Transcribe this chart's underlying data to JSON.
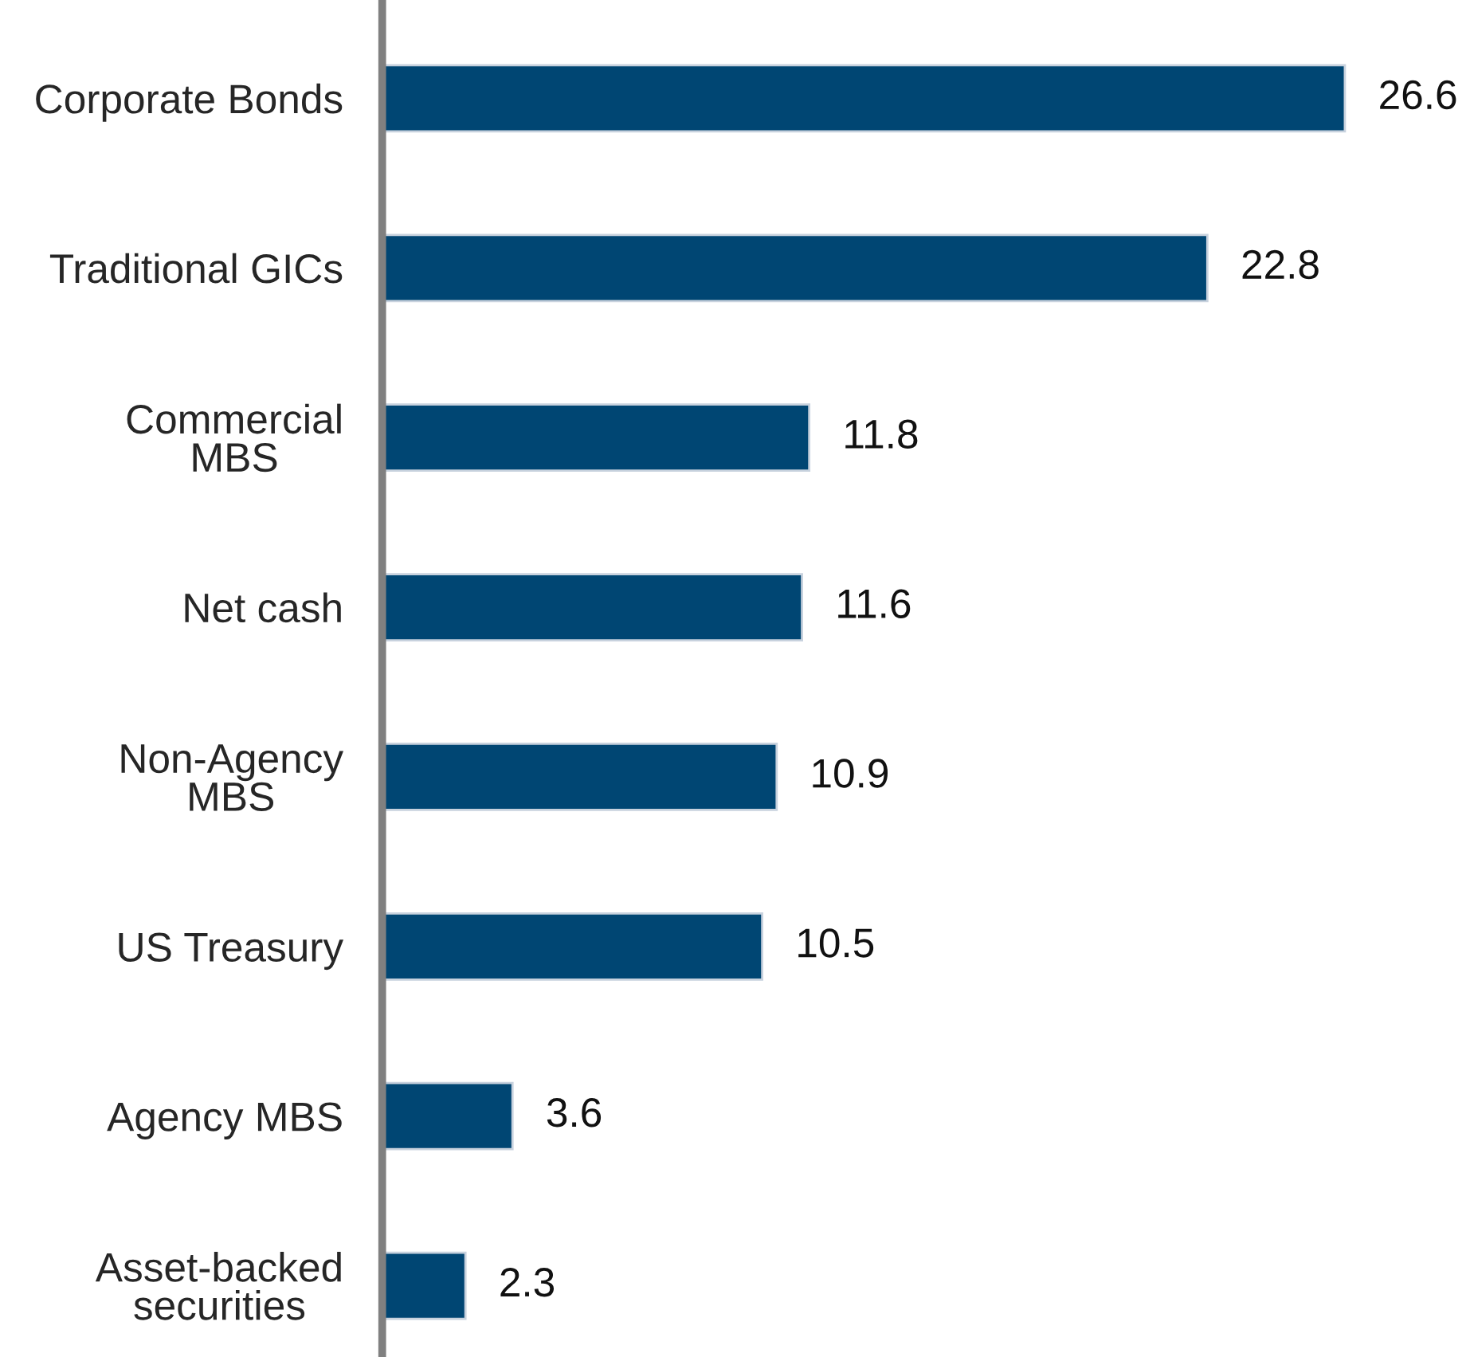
{
  "chart_data": {
    "type": "bar",
    "orientation": "horizontal",
    "categories": [
      "Corporate Bonds",
      "Traditional GICs",
      "Commercial\nMBS",
      "Net cash",
      "Non-Agency\nMBS",
      "US Treasury",
      "Agency MBS",
      "Asset-backed\nsecurities"
    ],
    "values": [
      26.6,
      22.8,
      11.8,
      11.6,
      10.9,
      10.5,
      3.6,
      2.3
    ],
    "color": "#004673",
    "data_labels": true,
    "grid": false,
    "legend": false
  }
}
